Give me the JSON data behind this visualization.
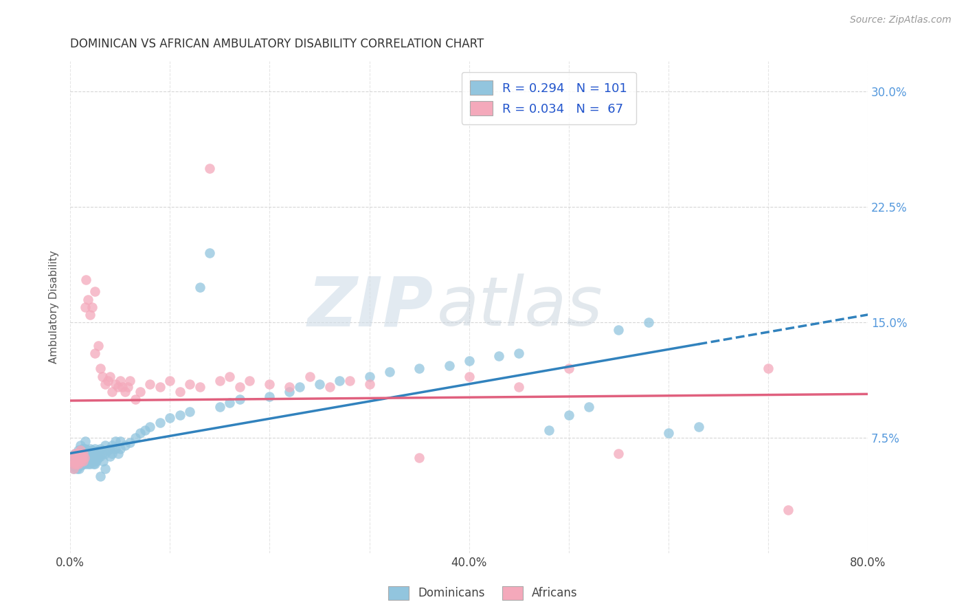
{
  "title": "DOMINICAN VS AFRICAN AMBULATORY DISABILITY CORRELATION CHART",
  "source": "Source: ZipAtlas.com",
  "ylabel": "Ambulatory Disability",
  "xlim": [
    0.0,
    0.8
  ],
  "ylim": [
    0.0,
    0.32
  ],
  "blue_color": "#92c5de",
  "pink_color": "#f4a9bb",
  "blue_line_color": "#3182bd",
  "pink_line_color": "#e0607e",
  "watermark_zip": "ZIP",
  "watermark_atlas": "atlas",
  "watermark_color_zip": "#c8d8ea",
  "watermark_color_atlas": "#b8c8da",
  "background_color": "#ffffff",
  "grid_color": "#cccccc",
  "title_color": "#333333",
  "axis_label_color": "#555555",
  "right_tick_color": "#5599dd",
  "source_color": "#999999",
  "blue_scatter": [
    [
      0.002,
      0.06
    ],
    [
      0.003,
      0.055
    ],
    [
      0.004,
      0.058
    ],
    [
      0.004,
      0.062
    ],
    [
      0.005,
      0.056
    ],
    [
      0.005,
      0.06
    ],
    [
      0.005,
      0.065
    ],
    [
      0.006,
      0.058
    ],
    [
      0.006,
      0.063
    ],
    [
      0.007,
      0.055
    ],
    [
      0.007,
      0.06
    ],
    [
      0.007,
      0.065
    ],
    [
      0.008,
      0.058
    ],
    [
      0.008,
      0.062
    ],
    [
      0.008,
      0.067
    ],
    [
      0.009,
      0.055
    ],
    [
      0.009,
      0.06
    ],
    [
      0.009,
      0.064
    ],
    [
      0.01,
      0.058
    ],
    [
      0.01,
      0.062
    ],
    [
      0.01,
      0.066
    ],
    [
      0.01,
      0.07
    ],
    [
      0.011,
      0.057
    ],
    [
      0.011,
      0.062
    ],
    [
      0.011,
      0.067
    ],
    [
      0.012,
      0.059
    ],
    [
      0.012,
      0.063
    ],
    [
      0.012,
      0.068
    ],
    [
      0.013,
      0.058
    ],
    [
      0.013,
      0.063
    ],
    [
      0.013,
      0.068
    ],
    [
      0.014,
      0.06
    ],
    [
      0.014,
      0.065
    ],
    [
      0.015,
      0.058
    ],
    [
      0.015,
      0.063
    ],
    [
      0.015,
      0.068
    ],
    [
      0.015,
      0.073
    ],
    [
      0.016,
      0.06
    ],
    [
      0.016,
      0.065
    ],
    [
      0.017,
      0.062
    ],
    [
      0.017,
      0.067
    ],
    [
      0.018,
      0.058
    ],
    [
      0.018,
      0.064
    ],
    [
      0.019,
      0.06
    ],
    [
      0.019,
      0.066
    ],
    [
      0.02,
      0.058
    ],
    [
      0.02,
      0.063
    ],
    [
      0.02,
      0.068
    ],
    [
      0.021,
      0.06
    ],
    [
      0.021,
      0.065
    ],
    [
      0.022,
      0.062
    ],
    [
      0.022,
      0.067
    ],
    [
      0.023,
      0.058
    ],
    [
      0.023,
      0.064
    ],
    [
      0.024,
      0.06
    ],
    [
      0.025,
      0.058
    ],
    [
      0.025,
      0.063
    ],
    [
      0.025,
      0.068
    ],
    [
      0.026,
      0.06
    ],
    [
      0.026,
      0.065
    ],
    [
      0.028,
      0.062
    ],
    [
      0.028,
      0.067
    ],
    [
      0.03,
      0.063
    ],
    [
      0.03,
      0.068
    ],
    [
      0.03,
      0.05
    ],
    [
      0.032,
      0.065
    ],
    [
      0.033,
      0.06
    ],
    [
      0.035,
      0.065
    ],
    [
      0.035,
      0.07
    ],
    [
      0.035,
      0.055
    ],
    [
      0.038,
      0.067
    ],
    [
      0.04,
      0.063
    ],
    [
      0.04,
      0.068
    ],
    [
      0.042,
      0.065
    ],
    [
      0.042,
      0.07
    ],
    [
      0.045,
      0.068
    ],
    [
      0.045,
      0.073
    ],
    [
      0.048,
      0.065
    ],
    [
      0.05,
      0.068
    ],
    [
      0.05,
      0.073
    ],
    [
      0.055,
      0.07
    ],
    [
      0.06,
      0.072
    ],
    [
      0.065,
      0.075
    ],
    [
      0.07,
      0.078
    ],
    [
      0.075,
      0.08
    ],
    [
      0.08,
      0.082
    ],
    [
      0.09,
      0.085
    ],
    [
      0.1,
      0.088
    ],
    [
      0.11,
      0.09
    ],
    [
      0.12,
      0.092
    ],
    [
      0.13,
      0.173
    ],
    [
      0.14,
      0.195
    ],
    [
      0.15,
      0.095
    ],
    [
      0.16,
      0.098
    ],
    [
      0.17,
      0.1
    ],
    [
      0.2,
      0.102
    ],
    [
      0.22,
      0.105
    ],
    [
      0.23,
      0.108
    ],
    [
      0.25,
      0.11
    ],
    [
      0.27,
      0.112
    ],
    [
      0.3,
      0.115
    ],
    [
      0.32,
      0.118
    ],
    [
      0.35,
      0.12
    ],
    [
      0.38,
      0.122
    ],
    [
      0.4,
      0.125
    ],
    [
      0.43,
      0.128
    ],
    [
      0.45,
      0.13
    ],
    [
      0.48,
      0.08
    ],
    [
      0.5,
      0.09
    ],
    [
      0.52,
      0.095
    ],
    [
      0.55,
      0.145
    ],
    [
      0.58,
      0.15
    ],
    [
      0.6,
      0.078
    ],
    [
      0.63,
      0.082
    ]
  ],
  "pink_scatter": [
    [
      0.002,
      0.06
    ],
    [
      0.003,
      0.055
    ],
    [
      0.004,
      0.058
    ],
    [
      0.004,
      0.063
    ],
    [
      0.005,
      0.06
    ],
    [
      0.005,
      0.065
    ],
    [
      0.006,
      0.058
    ],
    [
      0.006,
      0.063
    ],
    [
      0.007,
      0.06
    ],
    [
      0.007,
      0.065
    ],
    [
      0.008,
      0.058
    ],
    [
      0.008,
      0.063
    ],
    [
      0.009,
      0.06
    ],
    [
      0.009,
      0.065
    ],
    [
      0.01,
      0.062
    ],
    [
      0.01,
      0.067
    ],
    [
      0.011,
      0.06
    ],
    [
      0.011,
      0.065
    ],
    [
      0.012,
      0.062
    ],
    [
      0.013,
      0.06
    ],
    [
      0.013,
      0.065
    ],
    [
      0.014,
      0.062
    ],
    [
      0.015,
      0.16
    ],
    [
      0.016,
      0.178
    ],
    [
      0.018,
      0.165
    ],
    [
      0.02,
      0.155
    ],
    [
      0.022,
      0.16
    ],
    [
      0.025,
      0.13
    ],
    [
      0.025,
      0.17
    ],
    [
      0.028,
      0.135
    ],
    [
      0.03,
      0.12
    ],
    [
      0.032,
      0.115
    ],
    [
      0.035,
      0.11
    ],
    [
      0.038,
      0.112
    ],
    [
      0.04,
      0.115
    ],
    [
      0.042,
      0.105
    ],
    [
      0.045,
      0.11
    ],
    [
      0.048,
      0.108
    ],
    [
      0.05,
      0.112
    ],
    [
      0.052,
      0.108
    ],
    [
      0.055,
      0.105
    ],
    [
      0.058,
      0.108
    ],
    [
      0.06,
      0.112
    ],
    [
      0.065,
      0.1
    ],
    [
      0.07,
      0.105
    ],
    [
      0.08,
      0.11
    ],
    [
      0.09,
      0.108
    ],
    [
      0.1,
      0.112
    ],
    [
      0.11,
      0.105
    ],
    [
      0.12,
      0.11
    ],
    [
      0.13,
      0.108
    ],
    [
      0.14,
      0.25
    ],
    [
      0.15,
      0.112
    ],
    [
      0.16,
      0.115
    ],
    [
      0.17,
      0.108
    ],
    [
      0.18,
      0.112
    ],
    [
      0.2,
      0.11
    ],
    [
      0.22,
      0.108
    ],
    [
      0.24,
      0.115
    ],
    [
      0.26,
      0.108
    ],
    [
      0.28,
      0.112
    ],
    [
      0.3,
      0.11
    ],
    [
      0.35,
      0.062
    ],
    [
      0.4,
      0.115
    ],
    [
      0.45,
      0.108
    ],
    [
      0.5,
      0.12
    ],
    [
      0.55,
      0.065
    ],
    [
      0.7,
      0.12
    ],
    [
      0.72,
      0.028
    ]
  ]
}
